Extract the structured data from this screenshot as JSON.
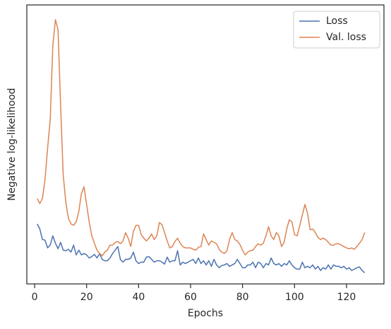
{
  "chart_data": {
    "type": "line",
    "x_label": "Epochs",
    "y_label": "Negative log-likelihood",
    "x": [
      1,
      2,
      3,
      4,
      5,
      6,
      7,
      8,
      9,
      10,
      11,
      12,
      13,
      14,
      15,
      16,
      17,
      18,
      19,
      20,
      21,
      22,
      23,
      24,
      25,
      26,
      27,
      28,
      29,
      30,
      31,
      32,
      33,
      34,
      35,
      36,
      37,
      38,
      39,
      40,
      41,
      42,
      43,
      44,
      45,
      46,
      47,
      48,
      49,
      50,
      51,
      52,
      53,
      54,
      55,
      56,
      57,
      58,
      59,
      60,
      61,
      62,
      63,
      64,
      65,
      66,
      67,
      68,
      69,
      70,
      71,
      72,
      73,
      74,
      75,
      76,
      77,
      78,
      79,
      80,
      81,
      82,
      83,
      84,
      85,
      86,
      87,
      88,
      89,
      90,
      91,
      92,
      93,
      94,
      95,
      96,
      97,
      98,
      99,
      100,
      101,
      102,
      103,
      104,
      105,
      106,
      107,
      108,
      109,
      110,
      111,
      112,
      113,
      114,
      115,
      116,
      117,
      118,
      119,
      120,
      121,
      122,
      123,
      124,
      125,
      126,
      127
    ],
    "series": [
      {
        "name": "Loss",
        "color": "#4c72b0",
        "values": [
          21.5,
          19.7,
          15.9,
          15.7,
          12.9,
          13.9,
          17.2,
          14.6,
          12.6,
          14.9,
          12.1,
          11.9,
          12.4,
          11.4,
          13.9,
          10.4,
          12.1,
          10.4,
          10.9,
          10.4,
          9.3,
          9.8,
          10.6,
          9.3,
          10.9,
          8.8,
          8.3,
          8.3,
          9.3,
          10.9,
          12.1,
          13.4,
          8.8,
          7.8,
          8.8,
          8.8,
          9.3,
          11.4,
          8.3,
          7.3,
          7.8,
          7.8,
          9.6,
          9.8,
          8.8,
          7.8,
          8.3,
          8.3,
          7.8,
          7.1,
          9.6,
          7.8,
          8.3,
          8.3,
          11.9,
          6.8,
          7.8,
          7.3,
          7.8,
          8.3,
          8.8,
          7.3,
          9.3,
          7.3,
          8.3,
          6.8,
          8.3,
          6.3,
          8.8,
          6.8,
          5.8,
          6.6,
          6.8,
          7.3,
          6.3,
          6.8,
          7.3,
          8.8,
          7.3,
          5.8,
          5.8,
          6.8,
          6.8,
          7.8,
          5.8,
          7.8,
          7.3,
          5.8,
          7.3,
          6.8,
          9.3,
          7.3,
          6.8,
          7.3,
          6.3,
          7.3,
          6.8,
          8.3,
          6.8,
          5.8,
          5.3,
          5.3,
          7.8,
          5.8,
          6.3,
          5.8,
          6.8,
          5.3,
          6.3,
          4.8,
          5.8,
          5.3,
          6.8,
          5.3,
          6.8,
          6.3,
          6.3,
          5.8,
          6.3,
          5.3,
          5.8,
          4.8,
          5.3,
          5.8,
          6.1,
          4.8,
          4.0
        ]
      },
      {
        "name": "Val. loss",
        "color": "#dd8452",
        "values": [
          30.6,
          28.8,
          30.6,
          37.4,
          48.7,
          58.8,
          85.4,
          94.7,
          91.2,
          63.9,
          39.1,
          29.3,
          23.5,
          21.5,
          21,
          22.2,
          26,
          32.3,
          34.8,
          28.5,
          22.2,
          17.2,
          14.6,
          12.1,
          10.9,
          10.1,
          11.4,
          12.1,
          13.9,
          13.9,
          14.9,
          15.2,
          14.4,
          15.4,
          18.4,
          16.4,
          13.4,
          18.9,
          21,
          21,
          17.7,
          16.4,
          15.4,
          16.4,
          17.9,
          15.9,
          17.2,
          22,
          21.2,
          18.4,
          15.4,
          12.9,
          13.4,
          15.2,
          16.4,
          14.6,
          13.4,
          12.9,
          12.9,
          12.9,
          12.4,
          12.1,
          13.1,
          13.4,
          17.9,
          15.9,
          13.9,
          15.4,
          14.9,
          14.4,
          12.4,
          11.4,
          10.9,
          11.9,
          15.9,
          18.4,
          15.9,
          15.4,
          14.1,
          12.1,
          10.4,
          11.4,
          11.9,
          12.1,
          13.4,
          14.4,
          13.9,
          14.6,
          17.2,
          20.5,
          17.2,
          15.9,
          18.4,
          17.2,
          13.4,
          14.9,
          19.7,
          23,
          22.2,
          17.7,
          17.2,
          20.9,
          24.7,
          28.5,
          25.3,
          19.4,
          19.7,
          18.4,
          16.7,
          15.9,
          16.4,
          15.9,
          14.9,
          13.9,
          13.9,
          14.4,
          14.4,
          13.9,
          13.4,
          12.9,
          12.6,
          12.9,
          12.4,
          13.4,
          14.6,
          15.9,
          18.4
        ]
      }
    ],
    "xlim": [
      -3,
      134.4
    ],
    "xticks": [
      0,
      20,
      40,
      60,
      80,
      100,
      120
    ],
    "ylim": [
      0,
      100
    ],
    "legend": "upper right"
  }
}
